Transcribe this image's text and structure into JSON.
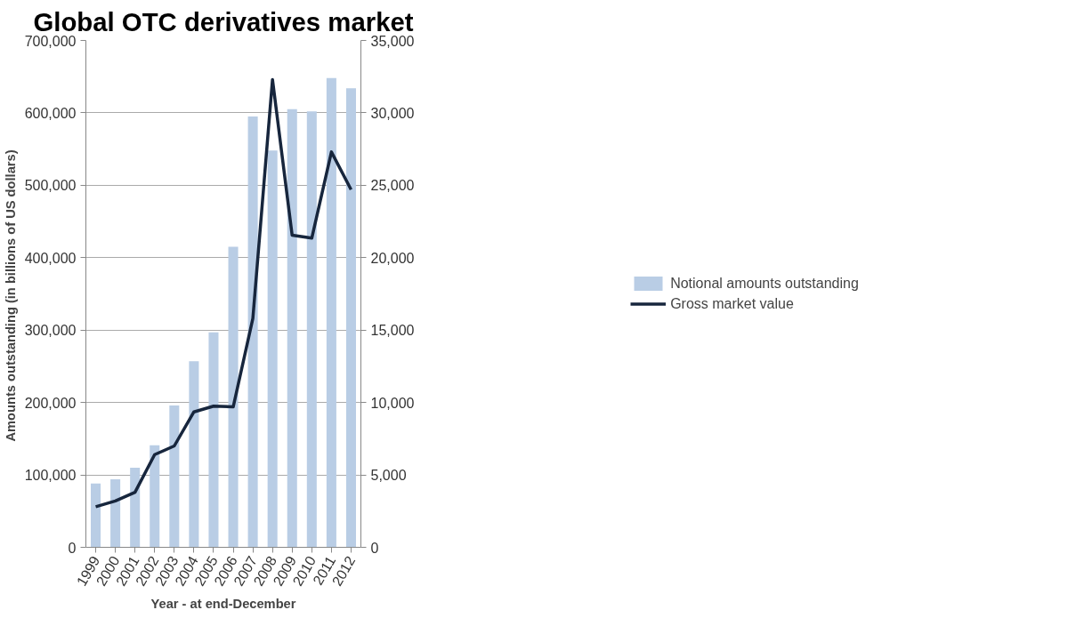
{
  "chart_data": {
    "type": "bar",
    "title": "Global OTC derivatives market",
    "xlabel": "Year - at end-December",
    "ylabel": "Amounts outstanding  (in billions of US dollars)",
    "categories": [
      "1999",
      "2000",
      "2001",
      "2002",
      "2003",
      "2004",
      "2005",
      "2006",
      "2007",
      "2008",
      "2009",
      "2010",
      "2011",
      "2012"
    ],
    "series": [
      {
        "name": "Notional amounts outstanding",
        "color": "#b9cde5",
        "values": [
          88000,
          94000,
          110000,
          141000,
          196000,
          257000,
          297000,
          415000,
          595000,
          548000,
          605000,
          602000,
          648000,
          634000
        ]
      },
      {
        "name": "Gross market value",
        "type": "line",
        "axis": "y2",
        "color": "#17263d",
        "values": [
          2800,
          3200,
          3800,
          6400,
          7000,
          9350,
          9750,
          9700,
          15800,
          32300,
          21550,
          21350,
          27300,
          24700
        ]
      }
    ],
    "ylim": [
      0,
      700000
    ],
    "yticks": [
      {
        "value": 0,
        "label": "0"
      },
      {
        "value": 100000,
        "label": "100,000"
      },
      {
        "value": 200000,
        "label": "200,000"
      },
      {
        "value": 300000,
        "label": "300,000"
      },
      {
        "value": 400000,
        "label": "400,000"
      },
      {
        "value": 500000,
        "label": "500,000"
      },
      {
        "value": 600000,
        "label": "600,000"
      },
      {
        "value": 700000,
        "label": "700,000"
      }
    ],
    "y2lim": [
      0,
      35000
    ],
    "y2ticks": [
      {
        "value": 0,
        "label": "0"
      },
      {
        "value": 5000,
        "label": "5,000"
      },
      {
        "value": 10000,
        "label": "10,000"
      },
      {
        "value": 15000,
        "label": "15,000"
      },
      {
        "value": 20000,
        "label": "20,000"
      },
      {
        "value": 25000,
        "label": "25,000"
      },
      {
        "value": 30000,
        "label": "30,000"
      },
      {
        "value": 35000,
        "label": "35,000"
      }
    ],
    "grid": "y",
    "legend": "right",
    "line_style": "solid"
  }
}
